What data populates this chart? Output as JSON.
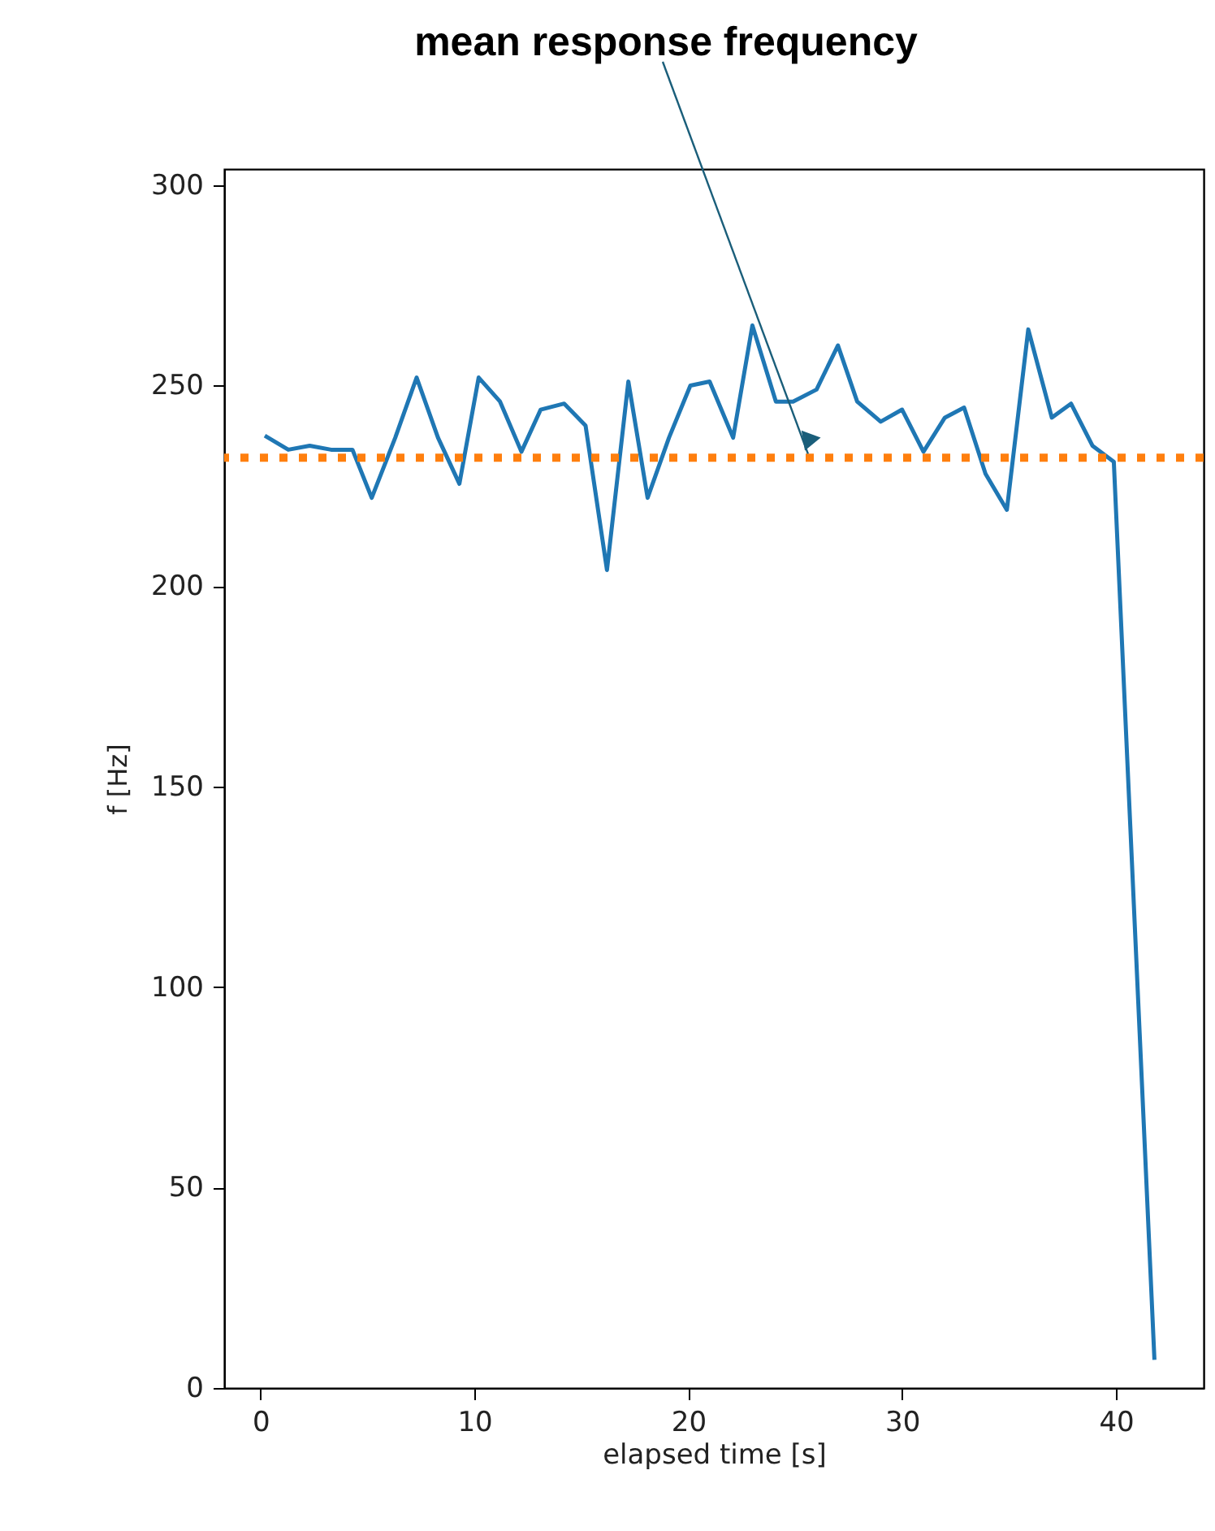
{
  "chart_data": {
    "type": "line",
    "xlabel": "elapsed time [s]",
    "ylabel": "f [Hz]",
    "x": [
      0.2,
      1.3,
      2.3,
      3.3,
      4.3,
      5.2,
      6.3,
      7.3,
      8.3,
      9.3,
      10.2,
      11.2,
      12.2,
      13.1,
      14.2,
      15.2,
      16.2,
      17.2,
      18.1,
      19.1,
      20.1,
      21.0,
      22.1,
      23.0,
      24.1,
      24.9,
      26.0,
      27.0,
      27.9,
      29.0,
      30.0,
      31.0,
      32.0,
      32.9,
      33.9,
      34.9,
      35.9,
      37.0,
      37.9,
      38.9,
      39.9,
      41.8
    ],
    "series": [
      {
        "color": "#1f77b4",
        "values": [
          237.5,
          234,
          235,
          234,
          234,
          222,
          237,
          252,
          237,
          225.5,
          252,
          246,
          233.5,
          244,
          245.5,
          240,
          204,
          251,
          222,
          237,
          250,
          251,
          237,
          265,
          246,
          246,
          249,
          260,
          246,
          241,
          244,
          233.5,
          242,
          244.5,
          228,
          219,
          264,
          242,
          245.5,
          235,
          231,
          7
        ]
      }
    ],
    "xlim": [
      -1.7,
      44.1
    ],
    "xticks": [
      0,
      10,
      20,
      30,
      40
    ],
    "ylim": [
      0,
      304
    ],
    "yticks": [
      0,
      50,
      100,
      150,
      200,
      250,
      300
    ],
    "grid": false,
    "marker": "none",
    "line_style": "solid",
    "ref_lines": [
      {
        "axis": "y",
        "value": 232,
        "color": "#ff7f0e",
        "line_style": "dotted"
      }
    ],
    "annotations": [
      {
        "text": "mean response frequency",
        "x": 25.6,
        "y": 233
      }
    ]
  }
}
